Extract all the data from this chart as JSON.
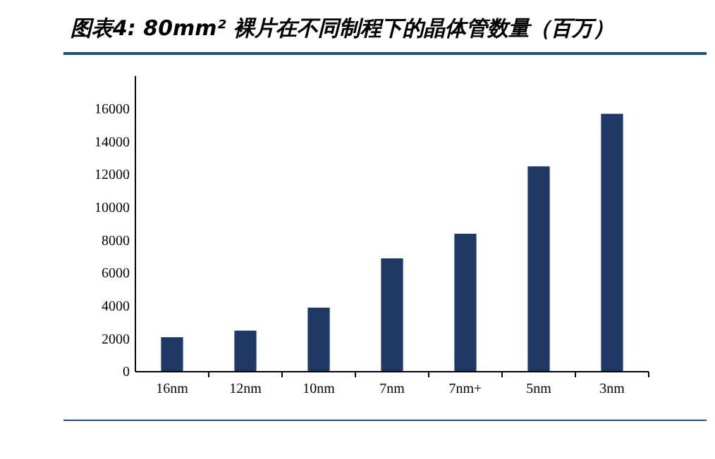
{
  "chart_data": {
    "type": "bar",
    "title": "图表4: 80mm² 裸片在不同制程下的晶体管数量（百万）",
    "categories": [
      "16nm",
      "12nm",
      "10nm",
      "7nm",
      "7nm+",
      "5nm",
      "3nm"
    ],
    "values": [
      2100,
      2500,
      3900,
      6900,
      8400,
      12500,
      15700
    ],
    "color": "#1f3864",
    "ylim": [
      0,
      18000
    ],
    "yticks": [
      0,
      2000,
      4000,
      6000,
      8000,
      10000,
      12000,
      14000,
      16000
    ],
    "grid": false
  }
}
